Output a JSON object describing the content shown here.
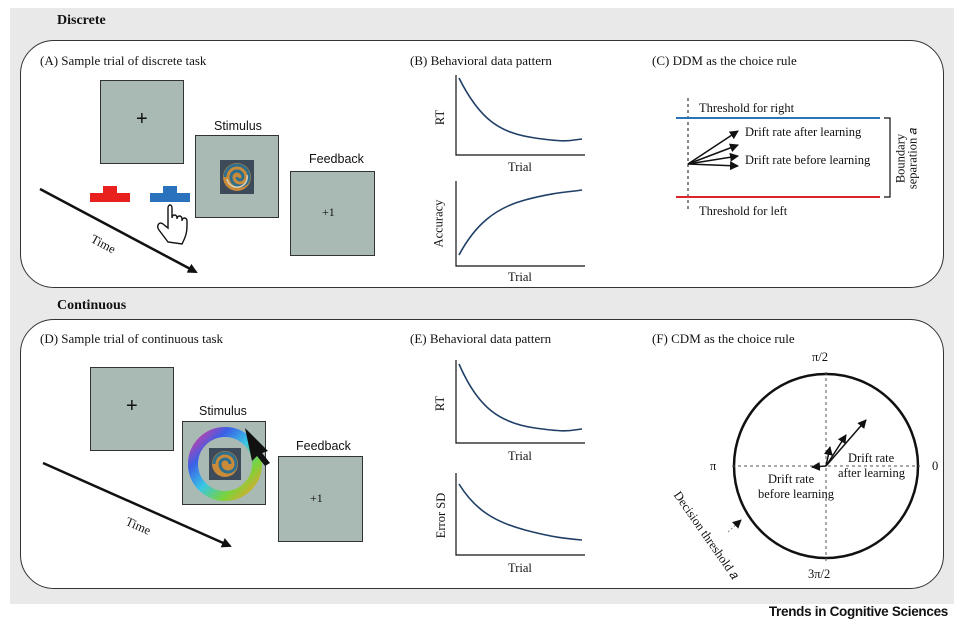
{
  "sections": {
    "discrete": "Discrete",
    "continuous": "Continuous"
  },
  "panels": {
    "A": {
      "title": "(A) Sample trial of discrete task",
      "fixation": "+",
      "stimulus": "Stimulus",
      "feedback": "Feedback",
      "feedback_value": "+1",
      "time": "Time"
    },
    "B": {
      "title": "(B) Behavioral data pattern",
      "top_ylabel": "RT",
      "top_xlabel": "Trial",
      "bottom_ylabel": "Accuracy",
      "bottom_xlabel": "Trial"
    },
    "C": {
      "title": "(C) DDM as the choice rule",
      "threshold_right": "Threshold for right",
      "threshold_left": "Threshold for left",
      "drift_after": "Drift rate after learning",
      "drift_before": "Drift rate before learning",
      "boundary_1": "Boundary",
      "boundary_2": "separation 𝑎"
    },
    "D": {
      "title": "(D) Sample trial of continuous task",
      "fixation": "+",
      "stimulus": "Stimulus",
      "feedback": "Feedback",
      "feedback_value": "+1",
      "time": "Time"
    },
    "E": {
      "title": "(E) Behavioral data pattern",
      "top_ylabel": "RT",
      "top_xlabel": "Trial",
      "bottom_ylabel": "Error SD",
      "bottom_xlabel": "Trial"
    },
    "F": {
      "title": "(F) CDM as the choice rule",
      "pi_half": "π/2",
      "zero": "0",
      "pi": "π",
      "three_pi_half": "3π/2",
      "drift_after_1": "Drift rate",
      "drift_after_2": "after learning",
      "drift_before_1": "Drift rate",
      "drift_before_2": "before learning",
      "decision_threshold": "Decision threshold 𝑎"
    }
  },
  "colors": {
    "screen": "#a9bab4",
    "threshold_right": "#2a74b8",
    "threshold_left": "#d9262a",
    "key_left": "#e8201e",
    "key_right": "#2a72bc",
    "curve": "#1f3f66"
  },
  "brand": "Trends in Cognitive Sciences"
}
